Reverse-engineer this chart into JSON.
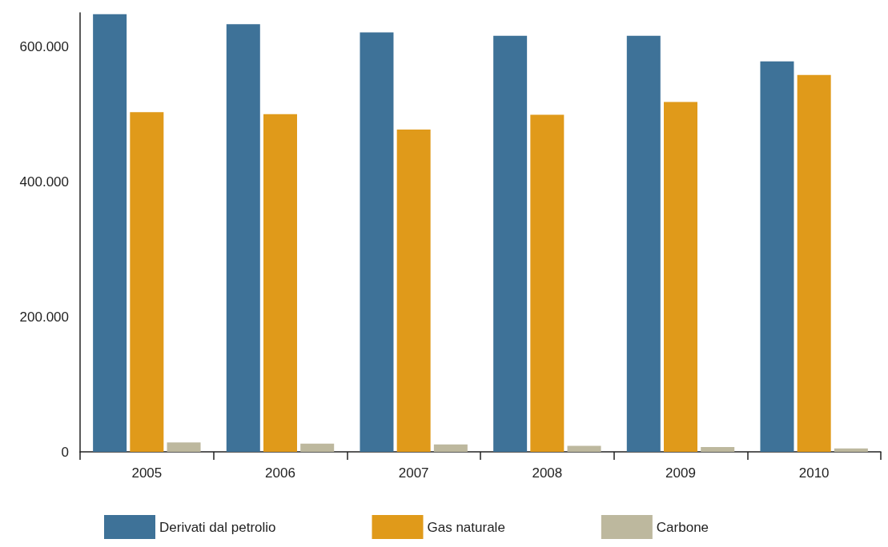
{
  "chart_data": {
    "type": "bar",
    "categories": [
      "2005",
      "2006",
      "2007",
      "2008",
      "2009",
      "2010"
    ],
    "series": [
      {
        "name": "Derivati dal petrolio",
        "color": "#3e7298",
        "values": [
          648000,
          633000,
          621000,
          616000,
          616000,
          578000
        ]
      },
      {
        "name": "Gas naturale",
        "color": "#e09a1a",
        "values": [
          503000,
          500000,
          477000,
          499000,
          518000,
          558000
        ]
      },
      {
        "name": "Carbone",
        "color": "#bdb89e",
        "values": [
          14000,
          12000,
          11000,
          9000,
          7000,
          5000
        ]
      }
    ],
    "ylim": [
      0,
      650000
    ],
    "yticks": [
      0,
      {
        "value": 200000,
        "label": "200.000"
      },
      {
        "value": 400000,
        "label": "400.000"
      },
      {
        "value": 600000,
        "label": "600.000"
      }
    ],
    "grid": false,
    "legend": "bottom"
  }
}
